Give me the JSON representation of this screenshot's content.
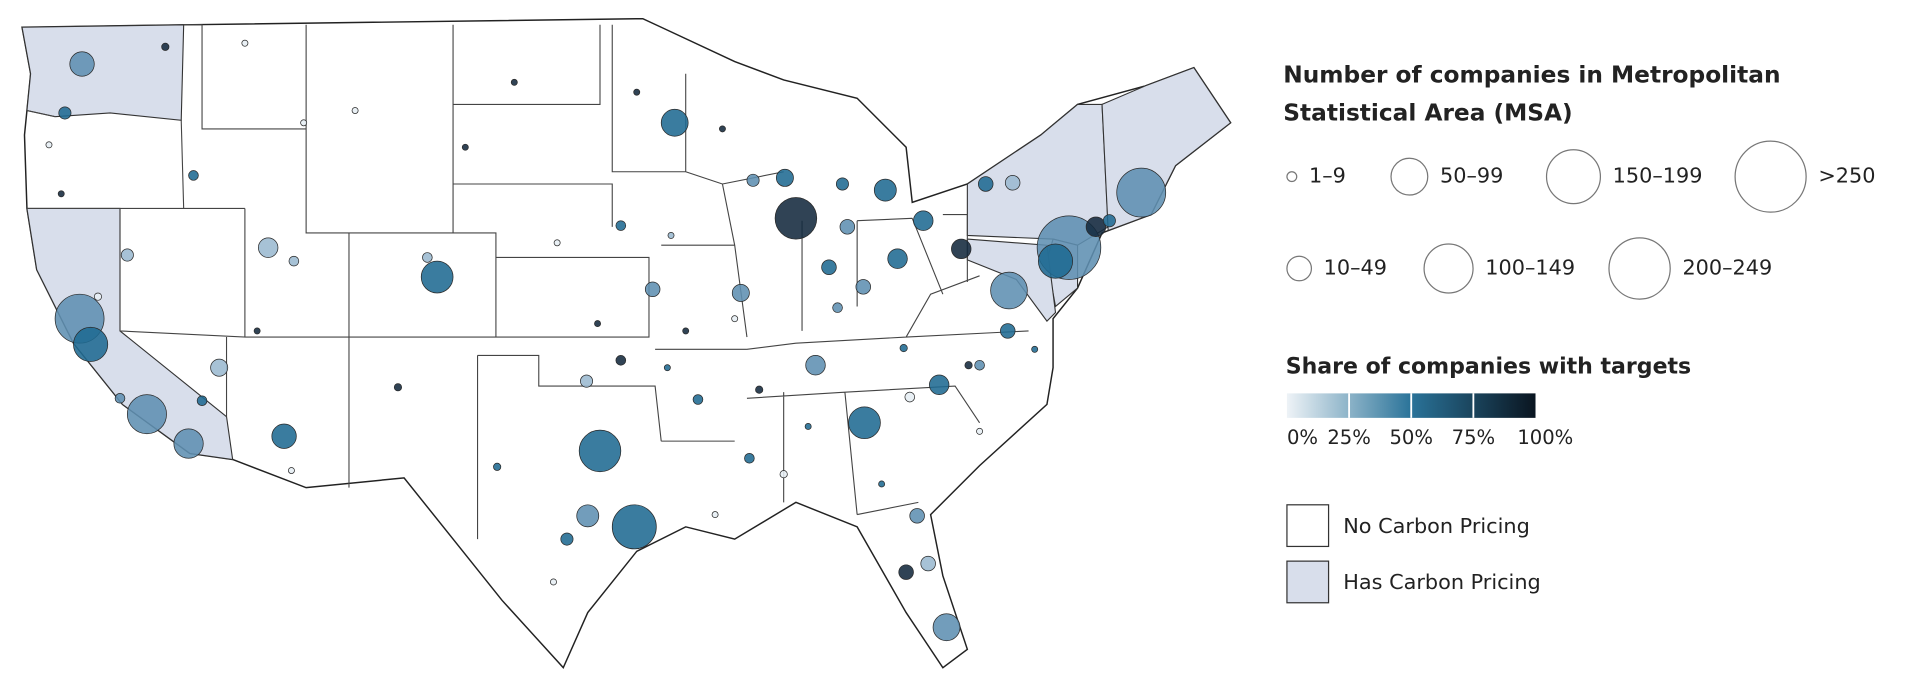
{
  "size_legend": {
    "title": "Number of companies in Metropolitan Statistical Area (MSA)",
    "items": [
      "1–9",
      "50–99",
      "150–199",
      ">250",
      "10–49",
      "100–149",
      "200–249"
    ]
  },
  "color_legend": {
    "title": "Share of companies with targets",
    "ticks": [
      {
        "value": 0,
        "label": "0%"
      },
      {
        "value": 25,
        "label": "25%"
      },
      {
        "value": 50,
        "label": "50%"
      },
      {
        "value": 75,
        "label": "75%"
      },
      {
        "value": 100,
        "label": "100%"
      }
    ]
  },
  "pricing_legend": {
    "items": [
      "No Carbon Pricing",
      "Has Carbon Pricing"
    ]
  }
}
